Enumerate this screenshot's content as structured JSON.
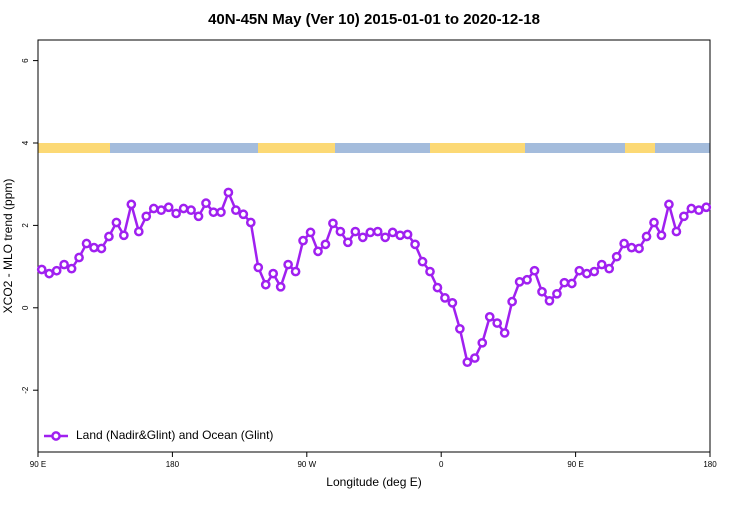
{
  "chart_data": {
    "type": "line",
    "title": "40N-45N May (Ver 10)   2015-01-01 to 2020-12-18",
    "x_label": "Longitude (deg E)",
    "y_label": "XCO2 - MLO trend (ppm)",
    "x": [
      92.5,
      97.5,
      102.5,
      107.5,
      112.5,
      117.5,
      122.5,
      127.5,
      132.5,
      137.5,
      142.5,
      147.5,
      152.5,
      157.5,
      162.5,
      167.5,
      172.5,
      177.5,
      182.5,
      187.5,
      192.5,
      197.5,
      202.5,
      207.5,
      212.5,
      217.5,
      222.5,
      227.5,
      232.5,
      237.5,
      242.5,
      247.5,
      252.5,
      257.5,
      262.5,
      267.5,
      272.5,
      277.5,
      282.5,
      287.5,
      292.5,
      297.5,
      302.5,
      307.5,
      312.5,
      317.5,
      322.5,
      327.5,
      332.5,
      337.5,
      342.5,
      347.5,
      352.5,
      357.5,
      362.5,
      367.5,
      372.5,
      377.5,
      382.5,
      387.5,
      392.5,
      397.5,
      402.5,
      407.5,
      412.5,
      417.5,
      422.5,
      427.5,
      432.5,
      437.5,
      442.5,
      447.5,
      452.5,
      457.5,
      462.5,
      467.5,
      472.5,
      477.5,
      482.5,
      487.5,
      492.5,
      497.5,
      502.5,
      507.5,
      512.5,
      517.5,
      522.5,
      527.5,
      532.5,
      537.5
    ],
    "series": [
      {
        "name": "Land (Nadir&Glint) and Ocean (Glint)",
        "color": "#a020f0",
        "values": [
          0.93,
          0.83,
          0.9,
          1.05,
          0.95,
          1.22,
          1.56,
          1.46,
          1.44,
          1.73,
          2.07,
          1.76,
          2.51,
          1.85,
          2.22,
          2.41,
          2.37,
          2.44,
          2.29,
          2.41,
          2.37,
          2.22,
          2.54,
          2.32,
          2.32,
          2.8,
          2.37,
          2.27,
          2.07,
          0.98,
          0.56,
          0.83,
          0.51,
          1.05,
          0.88,
          1.63,
          1.83,
          1.37,
          1.54,
          2.05,
          1.85,
          1.59,
          1.85,
          1.71,
          1.83,
          1.85,
          1.71,
          1.83,
          1.76,
          1.78,
          1.54,
          1.12,
          0.88,
          0.49,
          0.24,
          0.12,
          -0.51,
          -1.32,
          -1.22,
          -0.85,
          -0.22,
          -0.37,
          -0.61,
          0.15,
          0.63,
          0.68,
          0.9,
          0.39,
          0.17,
          0.34,
          0.61,
          0.59,
          0.9,
          0.83,
          0.88,
          1.05,
          0.95,
          1.24,
          1.56,
          1.46,
          1.44,
          1.73,
          2.07,
          1.76,
          2.51,
          1.85,
          2.22,
          2.41,
          2.37,
          2.44
        ]
      }
    ],
    "xlim": [
      90,
      540
    ],
    "xticks": [
      {
        "value": 90,
        "label": "90 E"
      },
      180,
      {
        "value": 270,
        "label": "90 W"
      },
      {
        "value": 360,
        "label": "0"
      },
      {
        "value": 450,
        "label": "90 E"
      },
      {
        "value": 540,
        "label": "180"
      }
    ],
    "ylim": [
      -3.5,
      6.5
    ],
    "yticks": [
      -2,
      0,
      2,
      4,
      6
    ],
    "legend": "bottomleft"
  }
}
